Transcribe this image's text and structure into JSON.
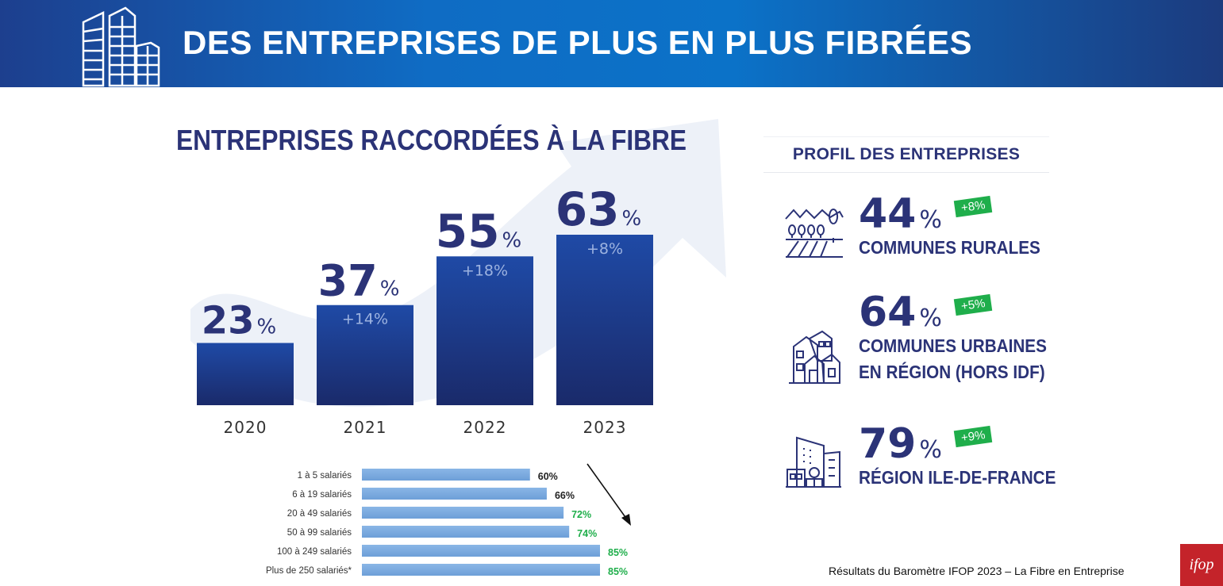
{
  "header": {
    "title": "DES ENTREPRISES DE PLUS EN PLUS FIBRÉES",
    "icon": "office-buildings-icon"
  },
  "colors": {
    "header_blue": "#0b72c8",
    "navy": "#2b3377",
    "bar_light": "#78a8df",
    "green": "#1fae4b",
    "logo_red": "#c4232a"
  },
  "chart_data": [
    {
      "type": "bar",
      "title": "ENTREPRISES RACCORDÉES À LA FIBRE",
      "categories": [
        "2020",
        "2021",
        "2022",
        "2023"
      ],
      "values": [
        23,
        37,
        55,
        63
      ],
      "value_labels": [
        "23",
        "37",
        "55",
        "63"
      ],
      "value_unit": "%",
      "changes": [
        "",
        "+14%",
        "+18%",
        "+8%"
      ],
      "ylim": [
        0,
        70
      ]
    },
    {
      "type": "bar",
      "orientation": "horizontal",
      "categories": [
        "1 à 5 salariés",
        "6 à 19 salariés",
        "20 à 49 salariés",
        "50 à 99 salariés",
        "100 à 249 salariés",
        "Plus de 250 salariés*"
      ],
      "values": [
        60,
        66,
        72,
        74,
        85,
        85
      ],
      "value_labels": [
        "60%",
        "66%",
        "72%",
        "74%",
        "85%",
        "85%"
      ],
      "label_colors": [
        "#222222",
        "#222222",
        "#1fae4b",
        "#1fae4b",
        "#1fae4b",
        "#1fae4b"
      ]
    }
  ],
  "profile": {
    "title": "PROFIL DES ENTREPRISES",
    "items": [
      {
        "value": "44",
        "unit": "%",
        "change": "+8%",
        "label_line1": "COMMUNES RURALES",
        "label_line2": "",
        "icon": "rural-landscape-icon"
      },
      {
        "value": "64",
        "unit": "%",
        "change": "+5%",
        "label_line1": "COMMUNES URBAINES",
        "label_line2": "EN RÉGION (HORS IDF)",
        "icon": "town-houses-icon"
      },
      {
        "value": "79",
        "unit": "%",
        "change": "+9%",
        "label_line1": "RÉGION ILE-DE-FRANCE",
        "label_line2": "",
        "icon": "city-buildings-icon"
      }
    ]
  },
  "footer": {
    "source": "Résultats du Baromètre IFOP 2023 – La Fibre en Entreprise",
    "logo": "ifop"
  }
}
